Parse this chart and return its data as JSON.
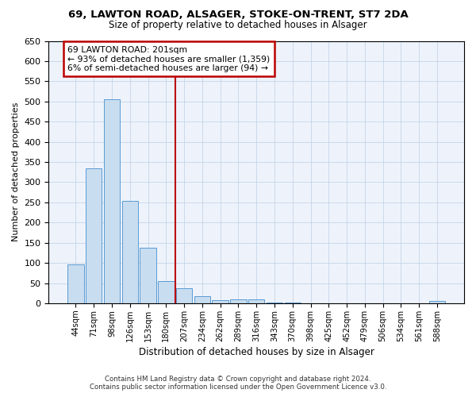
{
  "title_line1": "69, LAWTON ROAD, ALSAGER, STOKE-ON-TRENT, ST7 2DA",
  "title_line2": "Size of property relative to detached houses in Alsager",
  "xlabel": "Distribution of detached houses by size in Alsager",
  "ylabel": "Number of detached properties",
  "bar_color": "#c8ddef",
  "bar_edge_color": "#5b9bd5",
  "annotation_line_color": "#bb0000",
  "annotation_box_color": "#bb0000",
  "categories": [
    "44sqm",
    "71sqm",
    "98sqm",
    "126sqm",
    "153sqm",
    "180sqm",
    "207sqm",
    "234sqm",
    "262sqm",
    "289sqm",
    "316sqm",
    "343sqm",
    "370sqm",
    "398sqm",
    "425sqm",
    "452sqm",
    "479sqm",
    "506sqm",
    "534sqm",
    "561sqm",
    "588sqm"
  ],
  "values": [
    97,
    335,
    505,
    253,
    138,
    55,
    37,
    18,
    7,
    10,
    10,
    3,
    3,
    0,
    0,
    0,
    0,
    0,
    0,
    0,
    5
  ],
  "ylim": [
    0,
    650
  ],
  "yticks": [
    0,
    50,
    100,
    150,
    200,
    250,
    300,
    350,
    400,
    450,
    500,
    550,
    600,
    650
  ],
  "red_line_x": 5.5,
  "annotation_text_line1": "69 LAWTON ROAD: 201sqm",
  "annotation_text_line2": "← 93% of detached houses are smaller (1,359)",
  "annotation_text_line3": "6% of semi-detached houses are larger (94) →",
  "footnote_line1": "Contains HM Land Registry data © Crown copyright and database right 2024.",
  "footnote_line2": "Contains public sector information licensed under the Open Government Licence v3.0.",
  "grid_color": "#c5d5e8",
  "background_color": "#eef3fb"
}
